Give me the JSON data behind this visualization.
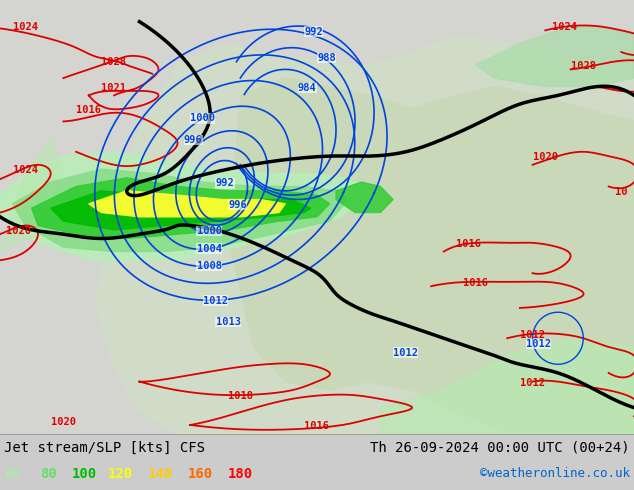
{
  "title_left": "Jet stream/SLP [kts] CFS",
  "title_right": "Th 26-09-2024 00:00 UTC (00+24)",
  "credit": "©weatheronline.co.uk",
  "legend_values": [
    "60",
    "80",
    "100",
    "120",
    "140",
    "160",
    "180"
  ],
  "legend_colors": [
    "#b0e8b0",
    "#66dd66",
    "#00bb00",
    "#ffff00",
    "#ffcc00",
    "#ff6600",
    "#ff0000"
  ],
  "bg_color": "#cccccc",
  "land_color": "#d8d8d0",
  "green_light": "#c8eec0",
  "green_med": "#88dd88",
  "green_bright": "#22cc22",
  "green_dark": "#009900",
  "yellow_color": "#ffff44",
  "red_color": "#dd0000",
  "blue_color": "#0044dd",
  "black_color": "#000000",
  "fig_width": 6.34,
  "fig_height": 4.9,
  "dpi": 100
}
